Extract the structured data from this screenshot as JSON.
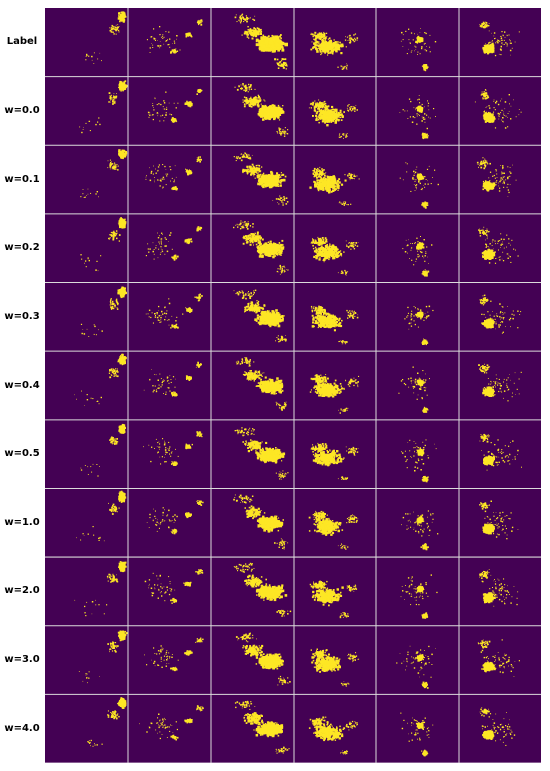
{
  "figure": {
    "row_labels": [
      "Label",
      "w=0.0",
      "w=0.1",
      "w=0.2",
      "w=0.3",
      "w=0.4",
      "w=0.5",
      "w=1.0",
      "w=2.0",
      "w=3.0",
      "w=4.0"
    ],
    "column_count": 6,
    "colors": {
      "background": "#440154",
      "foreground": "#fde725",
      "divider": "#dcdcdc"
    }
  }
}
